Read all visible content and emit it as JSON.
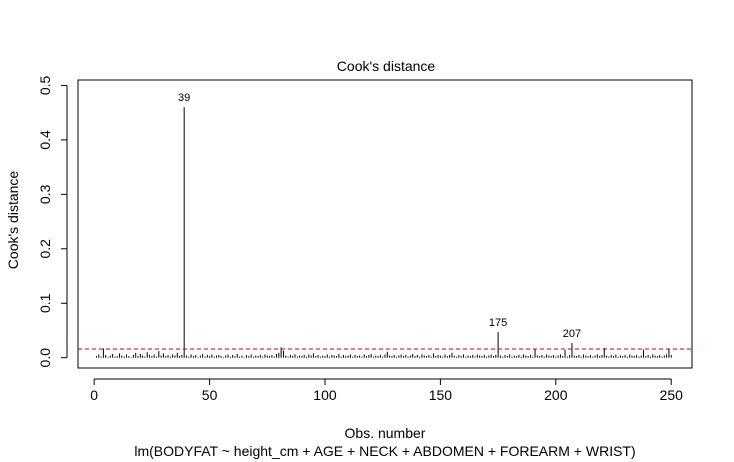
{
  "chart_data": {
    "type": "bar",
    "title": "Cook's distance",
    "xlabel": "Obs. number",
    "subtitle": "lm(BODYFAT ~ height_cm + AGE + NECK + ABDOMEN + FOREARM + WRIST)",
    "ylabel": "Cook's distance",
    "xlim": [
      -7,
      259
    ],
    "ylim": [
      -0.0189,
      0.51
    ],
    "x_ticks": [
      0,
      50,
      100,
      150,
      200,
      250
    ],
    "y_ticks": [
      0.0,
      0.1,
      0.2,
      0.3,
      0.4,
      0.5
    ],
    "x_tick_labels": [
      "0",
      "50",
      "100",
      "150",
      "200",
      "250"
    ],
    "y_tick_labels": [
      "0.0",
      "0.1",
      "0.2",
      "0.3",
      "0.4",
      "0.5"
    ],
    "reference_line": {
      "y": 0.016,
      "style": "dashed",
      "color": "#cc0000"
    },
    "n_obs": 250,
    "highlighted": [
      {
        "x": 39,
        "value": 0.46,
        "label": "39"
      },
      {
        "x": 175,
        "value": 0.047,
        "label": "175"
      },
      {
        "x": 207,
        "value": 0.027,
        "label": "207"
      }
    ],
    "values": [
      0.003,
      0.006,
      0.002,
      0.017,
      0.005,
      0.001,
      0.004,
      0.007,
      0.002,
      0.003,
      0.008,
      0.004,
      0.002,
      0.006,
      0.003,
      0.001,
      0.005,
      0.009,
      0.003,
      0.007,
      0.004,
      0.002,
      0.01,
      0.005,
      0.003,
      0.006,
      0.002,
      0.012,
      0.004,
      0.008,
      0.003,
      0.005,
      0.002,
      0.006,
      0.004,
      0.009,
      0.003,
      0.005,
      0.46,
      0.004,
      0.002,
      0.006,
      0.003,
      0.005,
      0.001,
      0.004,
      0.007,
      0.002,
      0.005,
      0.003,
      0.006,
      0.002,
      0.004,
      0.005,
      0.003,
      0.001,
      0.004,
      0.006,
      0.002,
      0.005,
      0.003,
      0.007,
      0.002,
      0.004,
      0.001,
      0.005,
      0.003,
      0.006,
      0.002,
      0.004,
      0.003,
      0.005,
      0.002,
      0.006,
      0.004,
      0.003,
      0.005,
      0.002,
      0.007,
      0.009,
      0.019,
      0.013,
      0.004,
      0.002,
      0.005,
      0.003,
      0.006,
      0.002,
      0.004,
      0.003,
      0.005,
      0.002,
      0.006,
      0.004,
      0.008,
      0.003,
      0.005,
      0.002,
      0.004,
      0.003,
      0.006,
      0.002,
      0.005,
      0.004,
      0.003,
      0.007,
      0.002,
      0.005,
      0.003,
      0.004,
      0.006,
      0.002,
      0.005,
      0.003,
      0.004,
      0.002,
      0.006,
      0.003,
      0.005,
      0.007,
      0.002,
      0.004,
      0.003,
      0.005,
      0.002,
      0.006,
      0.011,
      0.004,
      0.003,
      0.005,
      0.002,
      0.004,
      0.006,
      0.003,
      0.005,
      0.002,
      0.004,
      0.007,
      0.003,
      0.005,
      0.002,
      0.006,
      0.004,
      0.003,
      0.005,
      0.002,
      0.008,
      0.003,
      0.005,
      0.004,
      0.002,
      0.006,
      0.003,
      0.005,
      0.009,
      0.004,
      0.002,
      0.005,
      0.003,
      0.006,
      0.002,
      0.004,
      0.003,
      0.005,
      0.002,
      0.006,
      0.004,
      0.003,
      0.005,
      0.002,
      0.004,
      0.006,
      0.003,
      0.005,
      0.047,
      0.004,
      0.002,
      0.005,
      0.003,
      0.006,
      0.002,
      0.004,
      0.003,
      0.005,
      0.002,
      0.006,
      0.004,
      0.003,
      0.005,
      0.002,
      0.016,
      0.004,
      0.003,
      0.005,
      0.002,
      0.006,
      0.004,
      0.003,
      0.005,
      0.002,
      0.004,
      0.006,
      0.003,
      0.014,
      0.002,
      0.005,
      0.027,
      0.004,
      0.003,
      0.005,
      0.002,
      0.006,
      0.004,
      0.003,
      0.005,
      0.002,
      0.004,
      0.006,
      0.003,
      0.005,
      0.018,
      0.004,
      0.002,
      0.005,
      0.003,
      0.006,
      0.002,
      0.004,
      0.003,
      0.005,
      0.002,
      0.006,
      0.004,
      0.003,
      0.005,
      0.002,
      0.004,
      0.015,
      0.003,
      0.005,
      0.002,
      0.006,
      0.004,
      0.003,
      0.005,
      0.002,
      0.004,
      0.006,
      0.017,
      0.005
    ]
  }
}
